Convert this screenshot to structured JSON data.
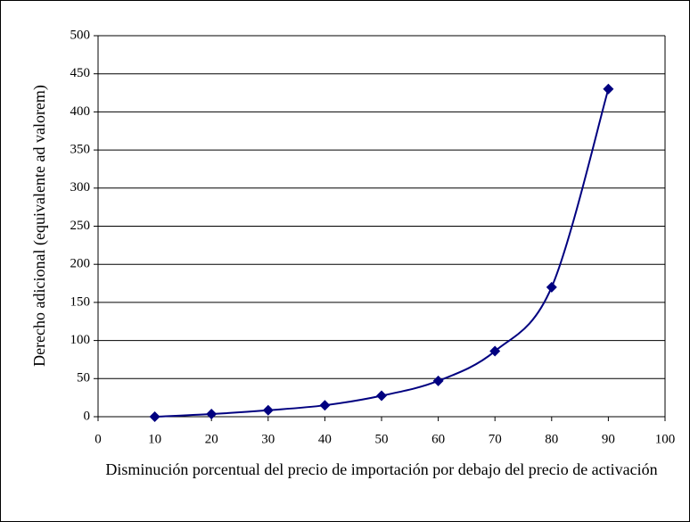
{
  "chart_data": {
    "type": "line",
    "xlabel": "Disminución porcentual del precio de importación por debajo del precio de activación",
    "ylabel": "Derecho adicional (equivalente ad valorem)",
    "x": [
      10,
      20,
      30,
      40,
      50,
      60,
      70,
      80,
      90
    ],
    "series": [
      {
        "color": "#000080",
        "values": [
          0,
          3.5,
          8.5,
          15,
          27.5,
          47,
          86,
          170,
          430
        ]
      }
    ],
    "xlim": [
      0,
      100
    ],
    "xticks": [
      0,
      10,
      20,
      30,
      40,
      50,
      60,
      70,
      80,
      90,
      100
    ],
    "ylim": [
      0,
      500
    ],
    "yticks": [
      0,
      50,
      100,
      150,
      200,
      250,
      300,
      350,
      400,
      450,
      500
    ],
    "grid": true
  }
}
